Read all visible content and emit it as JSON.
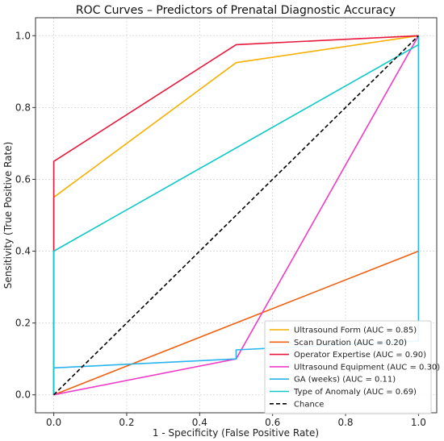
{
  "chart_data": {
    "type": "line",
    "title": "ROC Curves – Predictors of Prenatal Diagnostic Accuracy",
    "xlabel": "1 - Specificity (False Positive Rate)",
    "ylabel": "Sensitivity (True Positive Rate)",
    "xlim": [
      -0.05,
      1.05
    ],
    "ylim": [
      -0.05,
      1.05
    ],
    "xticks": [
      "0.0",
      "0.2",
      "0.4",
      "0.6",
      "0.8",
      "1.0"
    ],
    "yticks": [
      "0.0",
      "0.2",
      "0.4",
      "0.6",
      "0.8",
      "1.0"
    ],
    "grid": true,
    "legend_position": "bottom-right",
    "series": [
      {
        "name": "Ultrasound Form (AUC = 0.85)",
        "color": "#f5b000",
        "dash": false,
        "points": [
          [
            0,
            0
          ],
          [
            0,
            0.55
          ],
          [
            0.5,
            0.925
          ],
          [
            1,
            1
          ]
        ]
      },
      {
        "name": "Scan Duration (AUC = 0.20)",
        "color": "#f06010",
        "dash": false,
        "points": [
          [
            0,
            0
          ],
          [
            1,
            0.4
          ]
        ]
      },
      {
        "name": "Operator Expertise (AUC = 0.90)",
        "color": "#e8183c",
        "dash": false,
        "points": [
          [
            0,
            0
          ],
          [
            0,
            0.65
          ],
          [
            0.5,
            0.975
          ],
          [
            1,
            1
          ]
        ]
      },
      {
        "name": "Ultrasound Equipment (AUC = 0.30)",
        "color": "#ee3cc8",
        "dash": false,
        "points": [
          [
            0,
            0
          ],
          [
            0.5,
            0.1
          ],
          [
            1,
            1
          ]
        ]
      },
      {
        "name": "GA (weeks) (AUC = 0.11)",
        "color": "#28b4ec",
        "dash": false,
        "points": [
          [
            0,
            0
          ],
          [
            0,
            0.075
          ],
          [
            0.5,
            0.1
          ],
          [
            0.5,
            0.125
          ],
          [
            1,
            0.15
          ],
          [
            1,
            1
          ]
        ]
      },
      {
        "name": "Type of Anomaly (AUC = 0.69)",
        "color": "#10c8c8",
        "dash": false,
        "points": [
          [
            0,
            0
          ],
          [
            0,
            0.4
          ],
          [
            1,
            0.975
          ],
          [
            1,
            1
          ]
        ]
      },
      {
        "name": "Chance",
        "color": "#000000",
        "dash": true,
        "points": [
          [
            0,
            0
          ],
          [
            1,
            1
          ]
        ]
      }
    ]
  }
}
